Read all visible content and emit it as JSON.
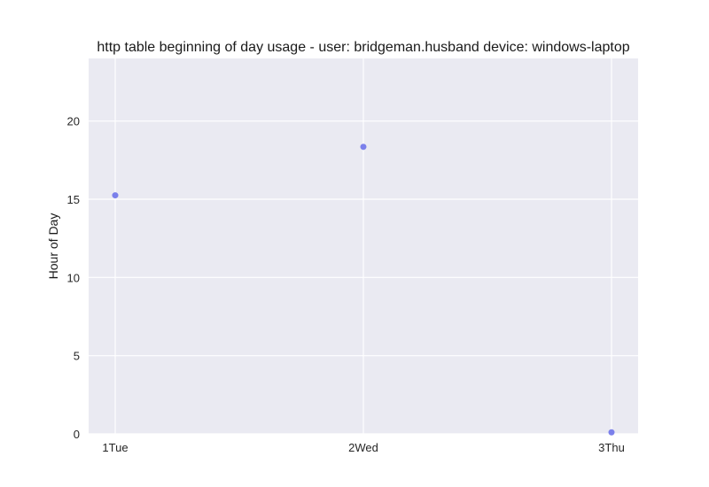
{
  "chart_data": {
    "type": "scatter",
    "title": "http table beginning of day usage -  user: bridgeman.husband device: windows-laptop",
    "xlabel": "",
    "ylabel": "Hour of Day",
    "categories": [
      "1Tue",
      "2Wed",
      "3Thu"
    ],
    "series": [
      {
        "values": [
          15.25,
          18.35,
          0.1
        ]
      }
    ],
    "ylim": [
      0,
      24
    ],
    "yticks": [
      0,
      5,
      10,
      15,
      20
    ],
    "grid": true,
    "legend": "none"
  },
  "colors": {
    "plot_background": "#eaeaf2",
    "grid": "#ffffff",
    "point": "#7479ea"
  }
}
